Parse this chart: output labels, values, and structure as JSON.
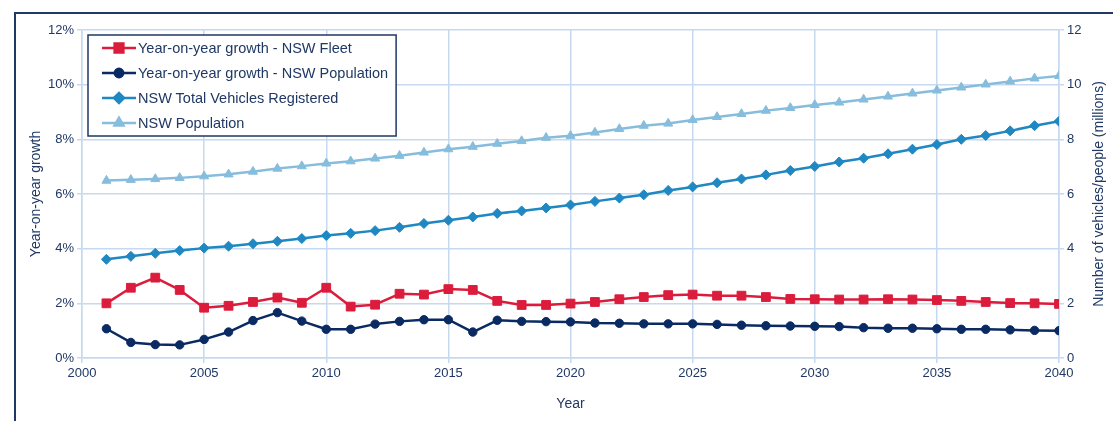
{
  "chart_data": {
    "type": "line",
    "xlabel": "Year",
    "ylabel": "Year-on-year growth",
    "y2label": "Number of vehicles/people (millions)",
    "x": [
      2001,
      2002,
      2003,
      2004,
      2005,
      2006,
      2007,
      2008,
      2009,
      2010,
      2011,
      2012,
      2013,
      2014,
      2015,
      2016,
      2017,
      2018,
      2019,
      2020,
      2021,
      2022,
      2023,
      2024,
      2025,
      2026,
      2027,
      2028,
      2029,
      2030,
      2031,
      2032,
      2033,
      2034,
      2035,
      2036,
      2037,
      2038,
      2039,
      2040
    ],
    "series": [
      {
        "name": "Year-on-year growth - NSW Fleet",
        "color": "#dc1c3c",
        "marker": "square",
        "values": [
          2.0,
          2.57,
          2.94,
          2.49,
          1.84,
          1.91,
          2.05,
          2.21,
          2.02,
          2.57,
          1.88,
          1.95,
          2.35,
          2.32,
          2.52,
          2.49,
          2.09,
          1.94,
          1.94,
          1.99,
          2.05,
          2.15,
          2.23,
          2.3,
          2.32,
          2.28,
          2.28,
          2.23,
          2.16,
          2.15,
          2.14,
          2.14,
          2.15,
          2.14,
          2.12,
          2.09,
          2.05,
          2.01,
          2.0,
          1.98
        ]
      },
      {
        "name": "Year-on-year growth - NSW Population",
        "color": "#0a2a63",
        "marker": "circle",
        "values": [
          1.07,
          0.57,
          0.49,
          0.48,
          0.68,
          0.95,
          1.37,
          1.66,
          1.35,
          1.05,
          1.05,
          1.24,
          1.34,
          1.4,
          1.4,
          0.95,
          1.38,
          1.34,
          1.33,
          1.32,
          1.28,
          1.27,
          1.25,
          1.25,
          1.25,
          1.23,
          1.2,
          1.18,
          1.17,
          1.16,
          1.15,
          1.11,
          1.09,
          1.09,
          1.07,
          1.05,
          1.05,
          1.03,
          1.01,
          1.0
        ]
      },
      {
        "name": "NSW Total Vehicles Registered",
        "color": "#1f88c2",
        "marker": "diamond",
        "axis": "y2",
        "values": [
          3.61,
          3.72,
          3.83,
          3.93,
          4.02,
          4.09,
          4.18,
          4.27,
          4.37,
          4.48,
          4.56,
          4.66,
          4.78,
          4.92,
          5.04,
          5.16,
          5.29,
          5.38,
          5.49,
          5.6,
          5.73,
          5.85,
          5.97,
          6.13,
          6.26,
          6.41,
          6.55,
          6.7,
          6.86,
          7.01,
          7.17,
          7.31,
          7.47,
          7.64,
          7.81,
          8.0,
          8.14,
          8.31,
          8.5,
          8.66
        ]
      },
      {
        "name": "NSW Population",
        "color": "#86bddd",
        "marker": "triangle",
        "axis": "y2",
        "values": [
          6.49,
          6.52,
          6.55,
          6.59,
          6.65,
          6.72,
          6.82,
          6.93,
          7.02,
          7.12,
          7.2,
          7.3,
          7.4,
          7.52,
          7.64,
          7.73,
          7.84,
          7.94,
          8.06,
          8.13,
          8.25,
          8.38,
          8.5,
          8.58,
          8.71,
          8.82,
          8.93,
          9.05,
          9.15,
          9.26,
          9.35,
          9.46,
          9.57,
          9.68,
          9.79,
          9.9,
          10.01,
          10.12,
          10.23,
          10.32
        ]
      }
    ],
    "xlim": [
      2000,
      2040
    ],
    "xticks": [
      2000,
      2005,
      2010,
      2015,
      2020,
      2025,
      2030,
      2035,
      2040
    ],
    "ylim": [
      0,
      12
    ],
    "yticks": [
      {
        "value": 0,
        "label": "0%"
      },
      {
        "value": 2,
        "label": "2%"
      },
      {
        "value": 4,
        "label": "4%"
      },
      {
        "value": 6,
        "label": "6%"
      },
      {
        "value": 8,
        "label": "8%"
      },
      {
        "value": 10,
        "label": "10%"
      },
      {
        "value": 12,
        "label": "12%"
      }
    ],
    "y2lim": [
      0,
      12
    ],
    "y2ticks": [
      0,
      2,
      4,
      6,
      8,
      10,
      12
    ],
    "grid": true,
    "legend": "top left",
    "line_style": "solid"
  }
}
